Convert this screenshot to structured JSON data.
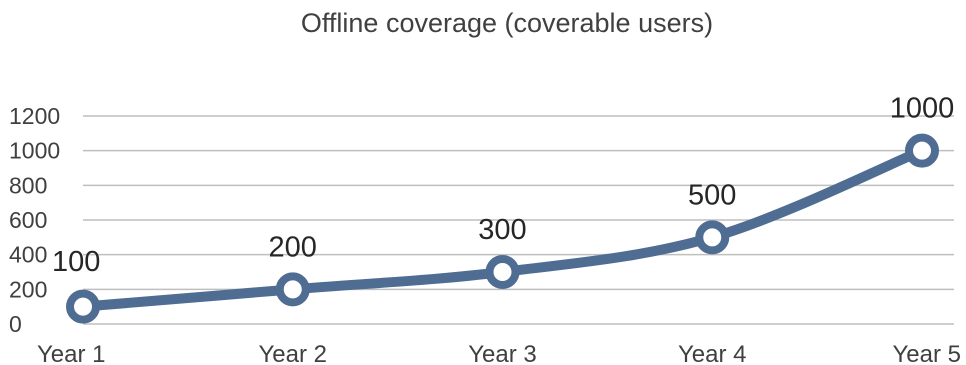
{
  "chart_data": {
    "type": "line",
    "title": "Offline coverage (coverable users)",
    "xlabel": "",
    "ylabel": "",
    "categories": [
      "Year 1",
      "Year 2",
      "Year 3",
      "Year 4",
      "Year 5"
    ],
    "series": [
      {
        "values": [
          100,
          200,
          300,
          500,
          1000
        ]
      }
    ],
    "data_labels": [
      "100",
      "200",
      "300",
      "500",
      "1000"
    ],
    "ylim": [
      0,
      1200
    ],
    "yticks": [
      0,
      200,
      400,
      600,
      800,
      1000,
      1200
    ],
    "ytick_labels": [
      "0",
      "200",
      "400",
      "600",
      "800",
      "1000",
      "1200"
    ],
    "grid": true,
    "legend": "none",
    "smoothed": true,
    "colors": {
      "line": "#4F6D93",
      "marker_fill": "#ffffff",
      "grid": "#BFBFBF",
      "text": "#404040"
    }
  }
}
